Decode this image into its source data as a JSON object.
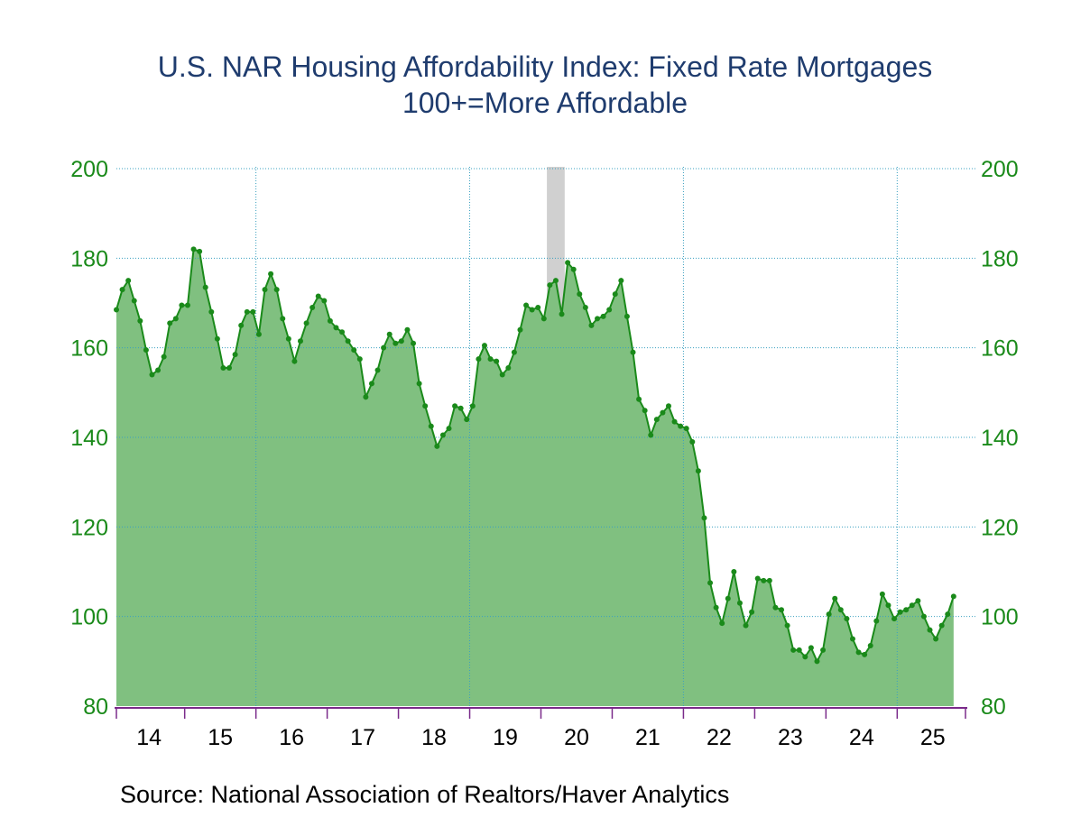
{
  "title": "U.S. NAR Housing Affordability Index: Fixed Rate Mortgages",
  "subtitle": "100+=More Affordable",
  "source": "Source:  National Association of Realtors/Haver Analytics",
  "chart_data": {
    "type": "area",
    "title": "U.S. NAR Housing Affordability Index: Fixed Rate Mortgages",
    "subtitle": "100+=More Affordable",
    "xlabel": "",
    "ylabel": "",
    "ylim": [
      80,
      200
    ],
    "yticks": [
      80,
      100,
      120,
      140,
      160,
      180,
      200
    ],
    "x_tick_labels": [
      "14",
      "15",
      "16",
      "17",
      "18",
      "19",
      "20",
      "21",
      "22",
      "23",
      "24",
      "25"
    ],
    "grid": true,
    "recession_band": [
      "2020-02",
      "2020-04"
    ],
    "colors": {
      "line": "#1a8a1a",
      "fill": "#80c080",
      "grid": "#3aa0c0",
      "recession": "#d0d0d0",
      "axis_text": "#1a8a1a",
      "title": "#1f3c6e",
      "x_axis": "#7a2a8a"
    },
    "series": [
      {
        "start": "2014-01",
        "frequency": "monthly",
        "values": [
          168.5,
          173,
          175,
          170.5,
          166,
          159.5,
          154,
          155,
          158,
          165.5,
          166.5,
          169.5,
          169.5,
          182,
          181.5,
          173.5,
          168,
          162,
          155.5,
          155.5,
          158.5,
          165,
          168,
          168,
          163,
          173,
          176.5,
          173,
          166.5,
          162,
          157,
          161.5,
          165.5,
          169,
          171.5,
          170.5,
          166,
          164.5,
          163.5,
          161.5,
          159.5,
          157.5,
          149,
          152,
          155,
          160,
          163,
          161,
          161.5,
          164,
          161,
          152,
          147,
          142.5,
          138,
          140.5,
          142,
          147,
          146.5,
          144,
          147,
          157.5,
          160.5,
          157.5,
          157,
          154,
          155.5,
          159,
          164,
          169.5,
          168.5,
          169,
          166.5,
          174,
          175,
          167.5,
          179,
          177.5,
          172,
          169,
          165,
          166.5,
          167,
          168.5,
          172,
          175,
          167,
          159,
          148.5,
          146,
          140.5,
          144,
          145.5,
          147,
          143.5,
          142.5,
          142,
          139,
          132.5,
          122,
          107.5,
          102,
          98.5,
          104,
          110,
          103,
          98,
          101,
          108.5,
          108,
          108,
          102,
          101.5,
          98,
          92.5,
          92.5,
          91,
          93,
          90,
          92.5,
          100.5,
          104,
          101.5,
          99.5,
          95,
          92,
          91.5,
          93.5,
          99,
          105,
          102.5,
          99.5,
          101,
          101.5,
          102.5,
          103.5,
          100,
          97,
          95,
          98,
          100.5,
          104.5
        ]
      }
    ]
  }
}
